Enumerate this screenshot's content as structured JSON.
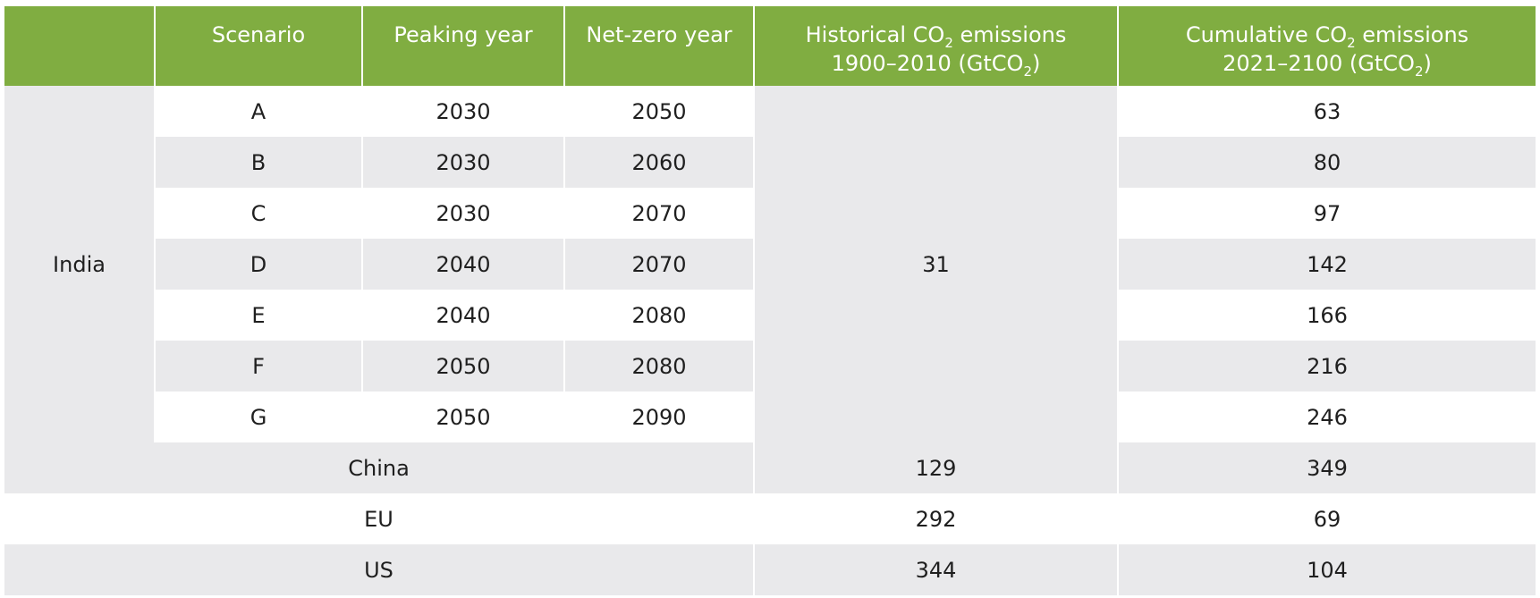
{
  "header": {
    "blank": "",
    "scenario": "Scenario",
    "peaking_year": "Peaking year",
    "net_zero_year": "Net-zero year",
    "historical_line1_pre": "Historical CO",
    "historical_line1_sub": "2",
    "historical_line1_post": " emissions",
    "historical_line2_pre": "1900–2010 (GtCO",
    "historical_line2_sub": "2",
    "historical_line2_post": ")",
    "cumulative_line1_pre": "Cumulative CO",
    "cumulative_line1_sub": "2",
    "cumulative_line1_post": " emissions",
    "cumulative_line2_pre": "2021–2100 (GtCO",
    "cumulative_line2_sub": "2",
    "cumulative_line2_post": ")"
  },
  "india": {
    "label": "India",
    "historical": "31",
    "rows": [
      {
        "scenario": "A",
        "peaking": "2030",
        "netzero": "2050",
        "cumulative": "63"
      },
      {
        "scenario": "B",
        "peaking": "2030",
        "netzero": "2060",
        "cumulative": "80"
      },
      {
        "scenario": "C",
        "peaking": "2030",
        "netzero": "2070",
        "cumulative": "97"
      },
      {
        "scenario": "D",
        "peaking": "2040",
        "netzero": "2070",
        "cumulative": "142"
      },
      {
        "scenario": "E",
        "peaking": "2040",
        "netzero": "2080",
        "cumulative": "166"
      },
      {
        "scenario": "F",
        "peaking": "2050",
        "netzero": "2080",
        "cumulative": "216"
      },
      {
        "scenario": "G",
        "peaking": "2050",
        "netzero": "2090",
        "cumulative": "246"
      }
    ]
  },
  "others": [
    {
      "country": "China",
      "historical": "129",
      "cumulative": "349"
    },
    {
      "country": "EU",
      "historical": "292",
      "cumulative": "69"
    },
    {
      "country": "US",
      "historical": "344",
      "cumulative": "104"
    }
  ]
}
